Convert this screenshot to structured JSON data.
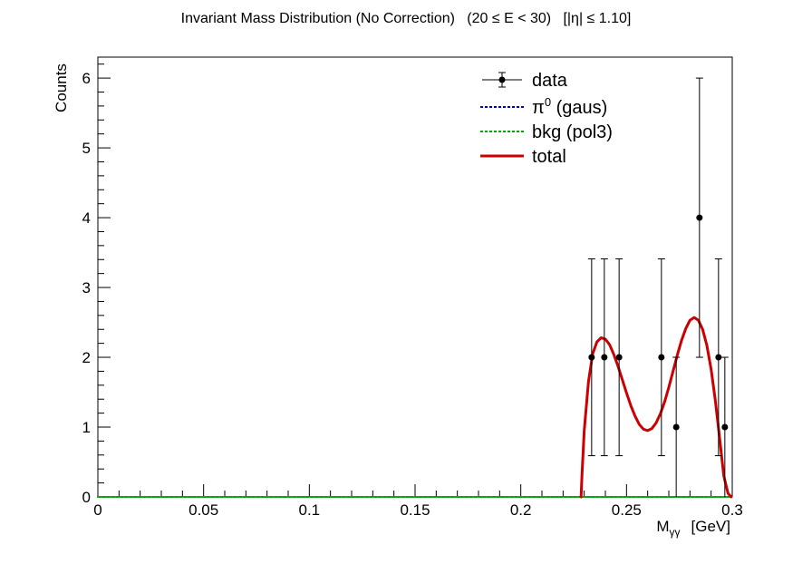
{
  "title": "Invariant Mass Distribution (No Correction)   (20 ≤ E < 30)   [|η| ≤ 1.10]",
  "chart_data": {
    "type": "scatter",
    "title": "Invariant Mass Distribution (No Correction)   (20 ≤ E < 30)   [|η| ≤ 1.10]",
    "xlabel": "Mγγ  [GeV]",
    "xlabel_main": "M",
    "xlabel_sub": "γγ",
    "xlabel_unit": "[GeV]",
    "ylabel": "Counts",
    "xlim": [
      0,
      0.3
    ],
    "ylim": [
      0,
      6.3
    ],
    "x_ticks": [
      0,
      0.05,
      0.1,
      0.15,
      0.2,
      0.25,
      0.3
    ],
    "x_tick_labels": [
      "0",
      "0.05",
      "0.1",
      "0.15",
      "0.2",
      "0.25",
      "0.3"
    ],
    "y_ticks": [
      0,
      1,
      2,
      3,
      4,
      5,
      6
    ],
    "y_tick_labels": [
      "0",
      "1",
      "2",
      "3",
      "4",
      "5",
      "6"
    ],
    "grid": false,
    "legend_position": "top-right",
    "series": [
      {
        "name": "data",
        "kind": "points-with-errors",
        "color": "#000000",
        "points": [
          {
            "x": 0.2335,
            "y": 2,
            "err_lo": 1.41,
            "err_hi": 1.41
          },
          {
            "x": 0.2395,
            "y": 2,
            "err_lo": 1.41,
            "err_hi": 1.41
          },
          {
            "x": 0.2465,
            "y": 2,
            "err_lo": 1.41,
            "err_hi": 1.41
          },
          {
            "x": 0.2665,
            "y": 2,
            "err_lo": 1.41,
            "err_hi": 1.41
          },
          {
            "x": 0.2735,
            "y": 1,
            "err_lo": 1.0,
            "err_hi": 1.0
          },
          {
            "x": 0.2845,
            "y": 4,
            "err_lo": 2.0,
            "err_hi": 2.0
          },
          {
            "x": 0.2935,
            "y": 2,
            "err_lo": 1.41,
            "err_hi": 1.41
          },
          {
            "x": 0.2965,
            "y": 1,
            "err_lo": 1.0,
            "err_hi": 1.0
          }
        ]
      },
      {
        "name": "π",
        "name_sup": "0",
        "name_suffix": " (gaus)",
        "kind": "line",
        "style": "dotted",
        "color": "#0000cc",
        "x": [
          0,
          0.3
        ],
        "y": [
          0,
          0
        ]
      },
      {
        "name": "bkg (pol3)",
        "kind": "line",
        "style": "dotted",
        "color": "#00aa00",
        "x": [
          0,
          0.3
        ],
        "y": [
          0,
          0
        ]
      },
      {
        "name": "total",
        "kind": "line",
        "style": "solid",
        "color": "#cc0000",
        "x": [
          0.2285,
          0.229,
          0.23,
          0.232,
          0.234,
          0.236,
          0.238,
          0.24,
          0.242,
          0.244,
          0.246,
          0.248,
          0.25,
          0.252,
          0.254,
          0.256,
          0.258,
          0.26,
          0.262,
          0.264,
          0.266,
          0.268,
          0.27,
          0.272,
          0.274,
          0.276,
          0.278,
          0.28,
          0.282,
          0.284,
          0.286,
          0.288,
          0.29,
          0.292,
          0.294,
          0.296,
          0.298,
          0.2995
        ],
        "y": [
          0.0,
          0.35,
          0.95,
          1.65,
          2.05,
          2.22,
          2.28,
          2.26,
          2.18,
          2.04,
          1.87,
          1.68,
          1.49,
          1.31,
          1.16,
          1.04,
          0.97,
          0.95,
          0.98,
          1.06,
          1.19,
          1.36,
          1.57,
          1.8,
          2.03,
          2.24,
          2.41,
          2.53,
          2.57,
          2.53,
          2.4,
          2.17,
          1.83,
          1.38,
          0.85,
          0.3,
          0.05,
          0.0
        ]
      }
    ]
  }
}
